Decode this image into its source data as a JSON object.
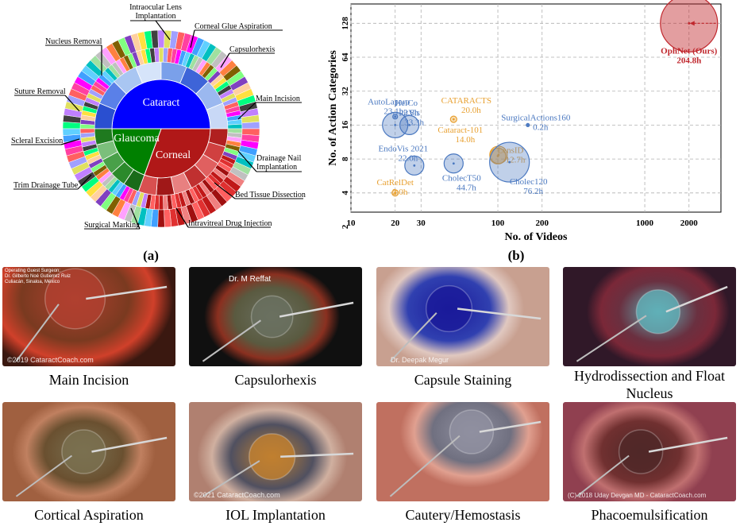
{
  "panel_a": {
    "label": "(a)",
    "inner_labels": {
      "cataract": "Cataract",
      "glaucoma": "Glaucoma",
      "corneal": "Corneal"
    },
    "callouts": [
      "Intraocular Lens Implantation",
      "Corneal Glue Aspiration",
      "Nucleus Removal",
      "Capsulorhexis",
      "Suture Removal",
      "Main Incision",
      "Scleral Excision",
      "Drainage Nail Implantation",
      "Trim Drainage Tube",
      "Bed Tissue Dissection",
      "Surgical Marking",
      "Intravitreal Drug Injection"
    ],
    "colors": {
      "cataract": "#0000ff",
      "glaucoma": "#008000",
      "corneal": "#b01818"
    }
  },
  "panel_b": {
    "label": "(b)",
    "chart_data": {
      "type": "scatter",
      "xlabel": "No. of Videos",
      "ylabel": "No. of Action Categories",
      "x_ticks": [
        "10",
        "20",
        "30",
        "100",
        "200",
        "1000",
        "2000"
      ],
      "y_ticks": [
        "2",
        "4",
        "8",
        "16",
        "32",
        "64",
        "128"
      ],
      "grid": true,
      "bubble_size": "hours of video",
      "points": [
        {
          "name": "OphNet (Ours)",
          "hours": "204.8h",
          "x": 2000,
          "y": 128,
          "group": "ours"
        },
        {
          "name": "HeiCo",
          "hours": "2.8h",
          "x": 21,
          "y": 18,
          "group": "general"
        },
        {
          "name": "AutoLaparo",
          "hours": "23.1h",
          "x": 21,
          "y": 11,
          "group": "general"
        },
        {
          "name": "CATARACTS",
          "hours": "20.0h",
          "x": 50,
          "y": 11,
          "group": "ophthalmic"
        },
        {
          "name": "PitVis",
          "hours": "33.3h",
          "x": 27,
          "y": 11,
          "group": "general"
        },
        {
          "name": "SurgicalActions160",
          "hours": "0.2h",
          "x": 160,
          "y": 16,
          "group": "general"
        },
        {
          "name": "EndoVis 2021",
          "hours": "22.0h",
          "x": 33,
          "y": 7,
          "group": "general"
        },
        {
          "name": "Cataract-101",
          "hours": "14.0h",
          "x": 101,
          "y": 8,
          "group": "ophthalmic"
        },
        {
          "name": "LensID",
          "hours": "12.7h",
          "x": 100,
          "y": 8,
          "group": "ophthalmic"
        },
        {
          "name": "CatRelDet",
          "hours": "2.0h",
          "x": 22,
          "y": 4,
          "group": "ophthalmic"
        },
        {
          "name": "CholecT50",
          "hours": "44.7h",
          "x": 50,
          "y": 7,
          "group": "general"
        },
        {
          "name": "Cholec120",
          "hours": "76.2h",
          "x": 120,
          "y": 7,
          "group": "general"
        }
      ],
      "colors": {
        "ours": "#c0272d",
        "general": "#4a78c0",
        "ophthalmic": "#e8a030"
      }
    }
  },
  "thumbnails": [
    {
      "caption": "Main Incision",
      "overlay": [
        "Operating Guest Surgeon:",
        "Dr. Gilberto Noé Gutierrez Ruiz",
        "Culiacán, Sinaloa, México"
      ],
      "watermark": "©2019 CataractCoach.com"
    },
    {
      "caption": "Capsulorhexis",
      "overlay": [
        "Dr. M Reffat"
      ],
      "watermark": ""
    },
    {
      "caption": "Capsule Staining",
      "overlay": [],
      "watermark": "Dr. Deepak Megur"
    },
    {
      "caption": "Hydrodissection and Float Nucleus",
      "overlay": [],
      "watermark": ""
    },
    {
      "caption": "Cortical Aspiration",
      "overlay": [],
      "watermark": ""
    },
    {
      "caption": "IOL Implantation",
      "overlay": [],
      "watermark": "©2021 CataractCoach.com"
    },
    {
      "caption": "Cautery/Hemostasis",
      "overlay": [],
      "watermark": ""
    },
    {
      "caption": "Phacoemulsification",
      "overlay": [],
      "watermark": "(C) 2018 Uday Devgan MD - CataractCoach.com"
    }
  ]
}
